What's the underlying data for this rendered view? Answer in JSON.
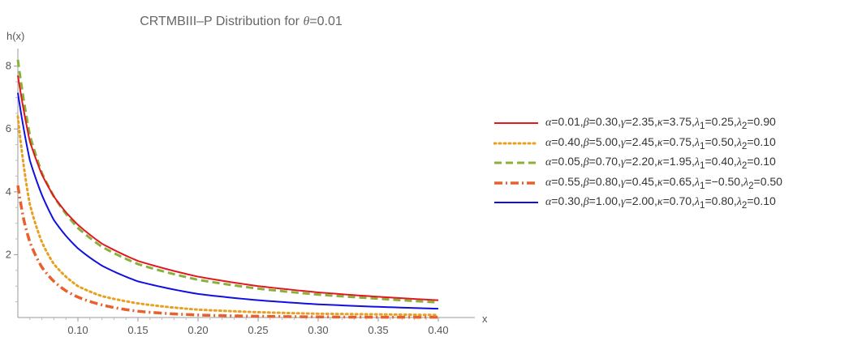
{
  "chart_data": {
    "type": "line",
    "title_prefix": "CRTMBIII–P Distribution for ",
    "title_theta": "θ",
    "title_suffix": "=0.01",
    "xlabel": "x",
    "ylabel": "h(x)",
    "xlim": [
      0.05,
      0.4
    ],
    "ylim": [
      0,
      8.5
    ],
    "x_ticks": [
      0.1,
      0.15,
      0.2,
      0.25,
      0.3,
      0.35,
      0.4
    ],
    "x_tick_labels": [
      "0.10",
      "0.15",
      "0.20",
      "0.25",
      "0.30",
      "0.35",
      "0.40"
    ],
    "y_ticks": [
      2,
      4,
      6,
      8
    ],
    "y_tick_labels": [
      "2",
      "4",
      "6",
      "8"
    ],
    "grid": false,
    "legend_position": "right",
    "series": [
      {
        "name": "α=0.01,β=0.30,γ=2.35,κ=3.75,λ1=0.25,λ2=0.90",
        "label_parts": [
          "α",
          "=0.01,",
          "β",
          "=0.30,",
          "γ",
          "=2.35,",
          "κ",
          "=3.75,",
          "λ",
          "1",
          "=0.25,",
          "λ",
          "2",
          "=0.90"
        ],
        "color": "#e0191e",
        "dash": "solid",
        "width": 2,
        "x": [
          0.05,
          0.06,
          0.07,
          0.08,
          0.09,
          0.1,
          0.12,
          0.15,
          0.2,
          0.25,
          0.3,
          0.35,
          0.4
        ],
        "y": [
          7.7,
          5.6,
          4.55,
          3.85,
          3.35,
          2.95,
          2.35,
          1.8,
          1.3,
          1.0,
          0.8,
          0.66,
          0.55
        ]
      },
      {
        "name": "α=0.40,β=5.00,γ=2.45,κ=0.75,λ1=0.50,λ2=0.10",
        "label_parts": [
          "α",
          "=0.40,",
          "β",
          "=5.00,",
          "γ",
          "=2.45,",
          "κ",
          "=0.75,",
          "λ",
          "1",
          "=0.50,",
          "λ",
          "2",
          "=0.10"
        ],
        "color": "#e8a020",
        "dash": "dotted",
        "width": 3,
        "x": [
          0.05,
          0.055,
          0.06,
          0.07,
          0.08,
          0.09,
          0.1,
          0.12,
          0.15,
          0.2,
          0.25,
          0.3,
          0.35,
          0.4
        ],
        "y": [
          6.4,
          4.8,
          3.6,
          2.4,
          1.7,
          1.3,
          1.0,
          0.68,
          0.45,
          0.25,
          0.17,
          0.12,
          0.1,
          0.08
        ]
      },
      {
        "name": "α=0.05,β=0.70,γ=2.20,κ=1.95,λ1=0.40,λ2=0.10",
        "label_parts": [
          "α",
          "=0.05,",
          "β",
          "=0.70,",
          "γ",
          "=2.20,",
          "κ",
          "=1.95,",
          "λ",
          "1",
          "=0.40,",
          "λ",
          "2",
          "=0.10"
        ],
        "color": "#8ab03c",
        "dash": "dashed",
        "width": 3,
        "x": [
          0.05,
          0.06,
          0.07,
          0.08,
          0.09,
          0.1,
          0.12,
          0.15,
          0.2,
          0.25,
          0.3,
          0.35,
          0.4
        ],
        "y": [
          8.2,
          5.8,
          4.6,
          3.85,
          3.3,
          2.85,
          2.25,
          1.7,
          1.2,
          0.92,
          0.73,
          0.6,
          0.48
        ]
      },
      {
        "name": "α=0.55,β=0.80,γ=0.45,κ=0.65,λ1=−0.50,λ2=0.50",
        "label_parts": [
          "α",
          "=0.55,",
          "β",
          "=0.80,",
          "γ",
          "=0.45,",
          "κ",
          "=0.65,",
          "λ",
          "1",
          "=−0.50,",
          "λ",
          "2",
          "=0.50"
        ],
        "color": "#e8602c",
        "dash": "dashdot",
        "width": 3.5,
        "x": [
          0.05,
          0.055,
          0.06,
          0.07,
          0.08,
          0.09,
          0.1,
          0.12,
          0.15,
          0.2,
          0.25,
          0.3,
          0.35,
          0.4
        ],
        "y": [
          4.2,
          3.1,
          2.4,
          1.6,
          1.15,
          0.85,
          0.65,
          0.4,
          0.2,
          0.08,
          0.04,
          0.02,
          0.01,
          0.01
        ]
      },
      {
        "name": "α=0.30,β=1.00,γ=2.00,κ=0.70,λ1=0.80,λ2=0.10",
        "label_parts": [
          "α",
          "=0.30,",
          "β",
          "=1.00,",
          "γ",
          "=2.00,",
          "κ",
          "=0.70,",
          "λ",
          "1",
          "=0.80,",
          "λ",
          "2",
          "=0.10"
        ],
        "color": "#1010e0",
        "dash": "solid",
        "width": 2,
        "x": [
          0.05,
          0.06,
          0.07,
          0.08,
          0.09,
          0.1,
          0.12,
          0.15,
          0.2,
          0.25,
          0.3,
          0.35,
          0.4
        ],
        "y": [
          7.15,
          5.0,
          3.9,
          3.1,
          2.6,
          2.2,
          1.65,
          1.15,
          0.75,
          0.55,
          0.42,
          0.34,
          0.28
        ]
      }
    ]
  }
}
